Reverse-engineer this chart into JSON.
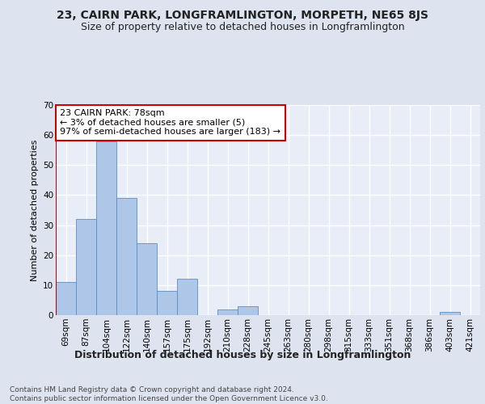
{
  "title": "23, CAIRN PARK, LONGFRAMLINGTON, MORPETH, NE65 8JS",
  "subtitle": "Size of property relative to detached houses in Longframlington",
  "xlabel": "Distribution of detached houses by size in Longframlington",
  "ylabel": "Number of detached properties",
  "categories": [
    "69sqm",
    "87sqm",
    "104sqm",
    "122sqm",
    "140sqm",
    "157sqm",
    "175sqm",
    "192sqm",
    "210sqm",
    "228sqm",
    "245sqm",
    "263sqm",
    "280sqm",
    "298sqm",
    "315sqm",
    "333sqm",
    "351sqm",
    "368sqm",
    "386sqm",
    "403sqm",
    "421sqm"
  ],
  "values": [
    11,
    32,
    58,
    39,
    24,
    8,
    12,
    0,
    2,
    3,
    0,
    0,
    0,
    0,
    0,
    0,
    0,
    0,
    0,
    1,
    0
  ],
  "bar_color": "#aec6e8",
  "bar_edge_color": "#5a8fc0",
  "highlight_line_color": "#cc0000",
  "annotation_text": "23 CAIRN PARK: 78sqm\n← 3% of detached houses are smaller (5)\n97% of semi-detached houses are larger (183) →",
  "annotation_box_color": "#ffffff",
  "annotation_box_edge_color": "#cc0000",
  "ylim": [
    0,
    70
  ],
  "yticks": [
    0,
    10,
    20,
    30,
    40,
    50,
    60,
    70
  ],
  "footer_text": "Contains HM Land Registry data © Crown copyright and database right 2024.\nContains public sector information licensed under the Open Government Licence v3.0.",
  "background_color": "#dde4f0",
  "plot_background_color": "#e8edf7",
  "grid_color": "#ffffff",
  "title_fontsize": 10,
  "subtitle_fontsize": 9,
  "xlabel_fontsize": 9,
  "ylabel_fontsize": 8,
  "tick_fontsize": 7.5,
  "footer_fontsize": 6.5,
  "annotation_fontsize": 8
}
